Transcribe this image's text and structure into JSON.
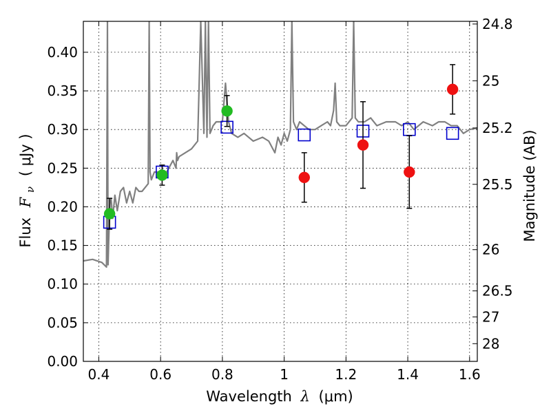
{
  "chart_data": {
    "type": "scatter",
    "x_axis": {
      "label_prefix": "Wavelength",
      "label_symbol": "λ",
      "label_unit": "(μm)",
      "range": [
        0.35,
        1.625
      ],
      "ticks": [
        0.4,
        0.6,
        0.8,
        1.0,
        1.2,
        1.4,
        1.6
      ],
      "tick_labels": [
        "0.4",
        "0.6",
        "0.8",
        "1",
        "1.2",
        "1.4",
        "1.6"
      ]
    },
    "y_axis": {
      "label_prefix": "Flux",
      "label_symbol": "F",
      "label_subscript": "ν",
      "label_unit": "( μJy )",
      "range": [
        0.0,
        0.44
      ],
      "ticks": [
        0.0,
        0.05,
        0.1,
        0.15,
        0.2,
        0.25,
        0.3,
        0.35,
        0.4
      ],
      "tick_labels": [
        "0.00",
        "0.05",
        "0.10",
        "0.15",
        "0.20",
        "0.25",
        "0.30",
        "0.35",
        "0.40"
      ]
    },
    "y2_axis": {
      "label": "Magnitude (AB)",
      "ticks": [
        24.8,
        25,
        25.2,
        25.5,
        26,
        26.5,
        27,
        28
      ],
      "tick_labels": [
        "24.8",
        "25",
        "25.2",
        "25.5",
        "26",
        "26.5",
        "27",
        "28"
      ]
    },
    "grid": true,
    "colors": {
      "spectrum": "#808080",
      "optical_points": "#22bb22",
      "nir_points": "#ee1111",
      "model_points": "#0000cc",
      "error_bars": "#000000"
    },
    "series": [
      {
        "kind": "line",
        "x": [
          0.35,
          0.38,
          0.41,
          0.425,
          0.428,
          0.43,
          0.432,
          0.436,
          0.44,
          0.445,
          0.452,
          0.46,
          0.47,
          0.48,
          0.49,
          0.5,
          0.51,
          0.52,
          0.53,
          0.54,
          0.55,
          0.56,
          0.563,
          0.566,
          0.57,
          0.58,
          0.6,
          0.62,
          0.64,
          0.65,
          0.652,
          0.655,
          0.66,
          0.68,
          0.7,
          0.72,
          0.73,
          0.74,
          0.745,
          0.75,
          0.755,
          0.76,
          0.765,
          0.77,
          0.78,
          0.8,
          0.81,
          0.82,
          0.83,
          0.85,
          0.87,
          0.9,
          0.93,
          0.95,
          0.97,
          0.98,
          0.99,
          1.0,
          1.01,
          1.02,
          1.025,
          1.03,
          1.04,
          1.05,
          1.08,
          1.1,
          1.12,
          1.14,
          1.15,
          1.16,
          1.165,
          1.17,
          1.18,
          1.2,
          1.22,
          1.225,
          1.23,
          1.24,
          1.26,
          1.28,
          1.3,
          1.33,
          1.36,
          1.38,
          1.4,
          1.42,
          1.45,
          1.48,
          1.5,
          1.52,
          1.54,
          1.56,
          1.58,
          1.6,
          1.625
        ],
        "y": [
          0.13,
          0.132,
          0.128,
          0.122,
          0.44,
          0.125,
          0.155,
          0.205,
          0.21,
          0.185,
          0.215,
          0.195,
          0.22,
          0.225,
          0.205,
          0.22,
          0.205,
          0.225,
          0.22,
          0.22,
          0.225,
          0.23,
          0.44,
          0.245,
          0.235,
          0.245,
          0.245,
          0.245,
          0.26,
          0.25,
          0.27,
          0.26,
          0.265,
          0.27,
          0.275,
          0.285,
          0.44,
          0.295,
          0.44,
          0.29,
          0.44,
          0.295,
          0.3,
          0.305,
          0.31,
          0.31,
          0.36,
          0.31,
          0.295,
          0.29,
          0.295,
          0.285,
          0.29,
          0.285,
          0.27,
          0.29,
          0.28,
          0.295,
          0.285,
          0.3,
          0.44,
          0.31,
          0.3,
          0.31,
          0.3,
          0.3,
          0.305,
          0.31,
          0.305,
          0.325,
          0.36,
          0.31,
          0.305,
          0.305,
          0.315,
          0.44,
          0.315,
          0.31,
          0.31,
          0.315,
          0.305,
          0.31,
          0.31,
          0.305,
          0.31,
          0.3,
          0.31,
          0.305,
          0.31,
          0.31,
          0.305,
          0.305,
          0.295,
          0.3,
          0.302
        ]
      },
      {
        "kind": "points",
        "marker": "open-square",
        "x": [
          0.435,
          0.605,
          0.815,
          1.065,
          1.255,
          1.405,
          1.545
        ],
        "y": [
          0.18,
          0.245,
          0.303,
          0.293,
          0.298,
          0.3,
          0.295
        ]
      },
      {
        "kind": "points",
        "marker": "filled-circle",
        "color_key": "optical_points",
        "x": [
          0.435,
          0.605,
          0.815
        ],
        "y": [
          0.191,
          0.241,
          0.324
        ],
        "yerr": [
          0.02,
          0.013,
          0.02
        ]
      },
      {
        "kind": "points",
        "marker": "filled-circle",
        "color_key": "nir_points",
        "x": [
          1.065,
          1.255,
          1.405,
          1.545
        ],
        "y": [
          0.238,
          0.28,
          0.245,
          0.352
        ],
        "yerr": [
          0.032,
          0.056,
          0.047,
          0.032
        ]
      }
    ]
  }
}
